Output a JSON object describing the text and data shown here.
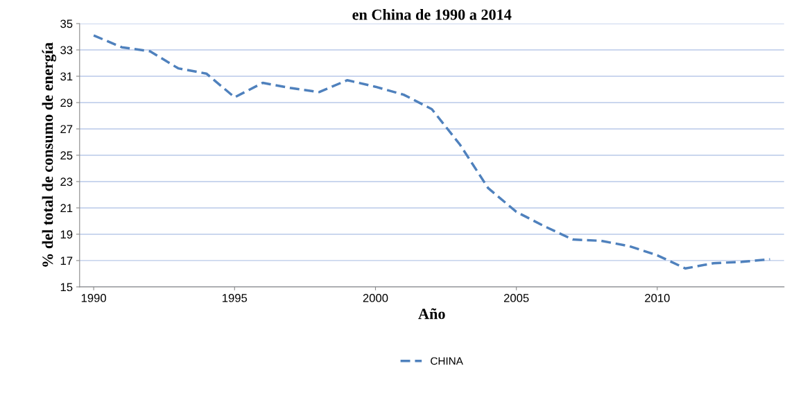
{
  "chart_data": {
    "type": "line",
    "title": "en China de 1990 a 2014",
    "xlabel": "Año",
    "ylabel": "% del total de consumo de energía",
    "x": [
      1990,
      1991,
      1992,
      1993,
      1994,
      1995,
      1996,
      1997,
      1998,
      1999,
      2000,
      2001,
      2002,
      2003,
      2004,
      2005,
      2006,
      2007,
      2008,
      2009,
      2010,
      2011,
      2012,
      2013,
      2014
    ],
    "series": [
      {
        "name": "CHINA",
        "color": "#4f81bd",
        "values": [
          34.1,
          33.2,
          32.9,
          31.6,
          31.2,
          29.4,
          30.5,
          30.1,
          29.8,
          30.7,
          30.2,
          29.6,
          28.5,
          25.8,
          22.5,
          20.7,
          19.6,
          18.6,
          18.5,
          18.1,
          17.4,
          16.4,
          16.8,
          16.9,
          17.1
        ]
      }
    ],
    "xlim": [
      1989.5,
      2014.5
    ],
    "xticks": [
      1990,
      1995,
      2000,
      2005,
      2010
    ],
    "ylim": [
      15,
      35
    ],
    "yticks": [
      15,
      17,
      19,
      21,
      23,
      25,
      27,
      29,
      31,
      33,
      35
    ],
    "grid": "y",
    "legend": "bottom",
    "line_style": "dashed",
    "marker": "none"
  }
}
